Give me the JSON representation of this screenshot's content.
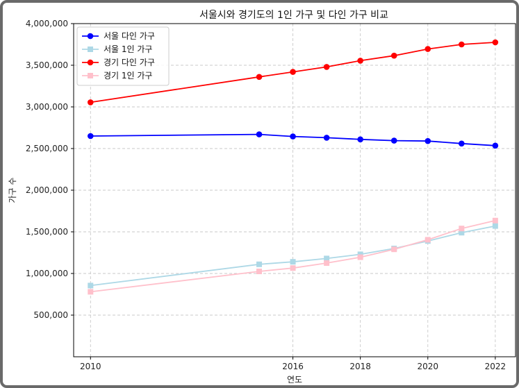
{
  "chart_data": {
    "type": "line",
    "title": "서울시와 경기도의 1인 가구 및 다인 가구 비교",
    "xlabel": "연도",
    "ylabel": "가구 수",
    "x": [
      2010,
      2015,
      2016,
      2017,
      2018,
      2019,
      2020,
      2021,
      2022
    ],
    "xticks": [
      2010,
      2016,
      2018,
      2020,
      2022
    ],
    "xtick_labels": [
      "2010",
      "2016",
      "2018",
      "2020",
      "2022"
    ],
    "yticks": [
      500000,
      1000000,
      1500000,
      2000000,
      2500000,
      3000000,
      3500000,
      4000000
    ],
    "ytick_labels": [
      "500,000",
      "1,000,000",
      "1,500,000",
      "2,000,000",
      "2,500,000",
      "3,000,000",
      "3,500,000",
      "4,000,000"
    ],
    "xlim": [
      2009.5,
      2022.6
    ],
    "ylim": [
      0,
      4000000
    ],
    "grid": true,
    "legend_position": "top-left",
    "series": [
      {
        "name": "서울 다인 가구",
        "color": "#0000ff",
        "marker": "circle",
        "values": [
          2650000,
          2670000,
          2645000,
          2630000,
          2610000,
          2595000,
          2590000,
          2560000,
          2535000
        ]
      },
      {
        "name": "서울 1인 가구",
        "color": "#add8e6",
        "marker": "square",
        "values": [
          855000,
          1110000,
          1140000,
          1180000,
          1230000,
          1300000,
          1390000,
          1490000,
          1570000
        ]
      },
      {
        "name": "경기 다인 가구",
        "color": "#ff0000",
        "marker": "circle",
        "values": [
          3055000,
          3360000,
          3420000,
          3480000,
          3555000,
          3615000,
          3695000,
          3750000,
          3775000
        ]
      },
      {
        "name": "경기 1인 가구",
        "color": "#ffc0cb",
        "marker": "square",
        "values": [
          780000,
          1025000,
          1065000,
          1125000,
          1195000,
          1290000,
          1405000,
          1540000,
          1635000
        ]
      }
    ]
  }
}
